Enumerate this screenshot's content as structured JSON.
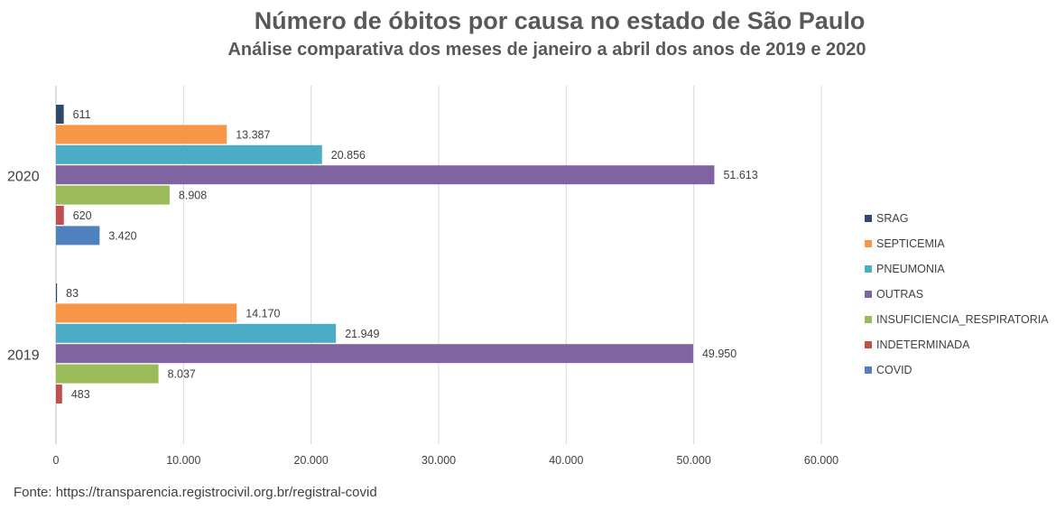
{
  "title": "Número de óbitos por causa no estado de São Paulo",
  "subtitle": "Análise comparativa dos meses de janeiro a abril dos anos de 2019 e 2020",
  "footnote": "Fonte: https://transparencia.registrocivil.org.br/registral-covid",
  "chart_data": {
    "type": "bar",
    "orientation": "horizontal",
    "categories": [
      "2020",
      "2019"
    ],
    "series": [
      {
        "name": "SRAG",
        "color": "#2E4A6B",
        "values": [
          611,
          83
        ],
        "labels": [
          "611",
          "83"
        ]
      },
      {
        "name": "SEPTICEMIA",
        "color": "#F79646",
        "values": [
          13387,
          14170
        ],
        "labels": [
          "13.387",
          "14.170"
        ]
      },
      {
        "name": "PNEUMONIA",
        "color": "#4BACC6",
        "values": [
          20856,
          21949
        ],
        "labels": [
          "20.856",
          "21.949"
        ]
      },
      {
        "name": "OUTRAS",
        "color": "#8064A2",
        "values": [
          51613,
          49950
        ],
        "labels": [
          "51.613",
          "49.950"
        ]
      },
      {
        "name": "INSUFICIENCIA_RESPIRATORIA",
        "color": "#9BBB59",
        "values": [
          8908,
          8037
        ],
        "labels": [
          "8.908",
          "8.037"
        ]
      },
      {
        "name": "INDETERMINADA",
        "color": "#C0504D",
        "values": [
          620,
          483
        ],
        "labels": [
          "620",
          "483"
        ]
      },
      {
        "name": "COVID",
        "color": "#4F81BD",
        "values": [
          3420,
          null
        ],
        "labels": [
          "3.420",
          ""
        ]
      }
    ],
    "xlim": [
      0,
      60000
    ],
    "xticks": [
      {
        "value": 0,
        "label": "0"
      },
      {
        "value": 10000,
        "label": "10.000"
      },
      {
        "value": 20000,
        "label": "20.000"
      },
      {
        "value": 30000,
        "label": "30.000"
      },
      {
        "value": 40000,
        "label": "40.000"
      },
      {
        "value": 50000,
        "label": "50.000"
      },
      {
        "value": 60000,
        "label": "60.000"
      }
    ],
    "grid": true,
    "legend_position": "right"
  }
}
